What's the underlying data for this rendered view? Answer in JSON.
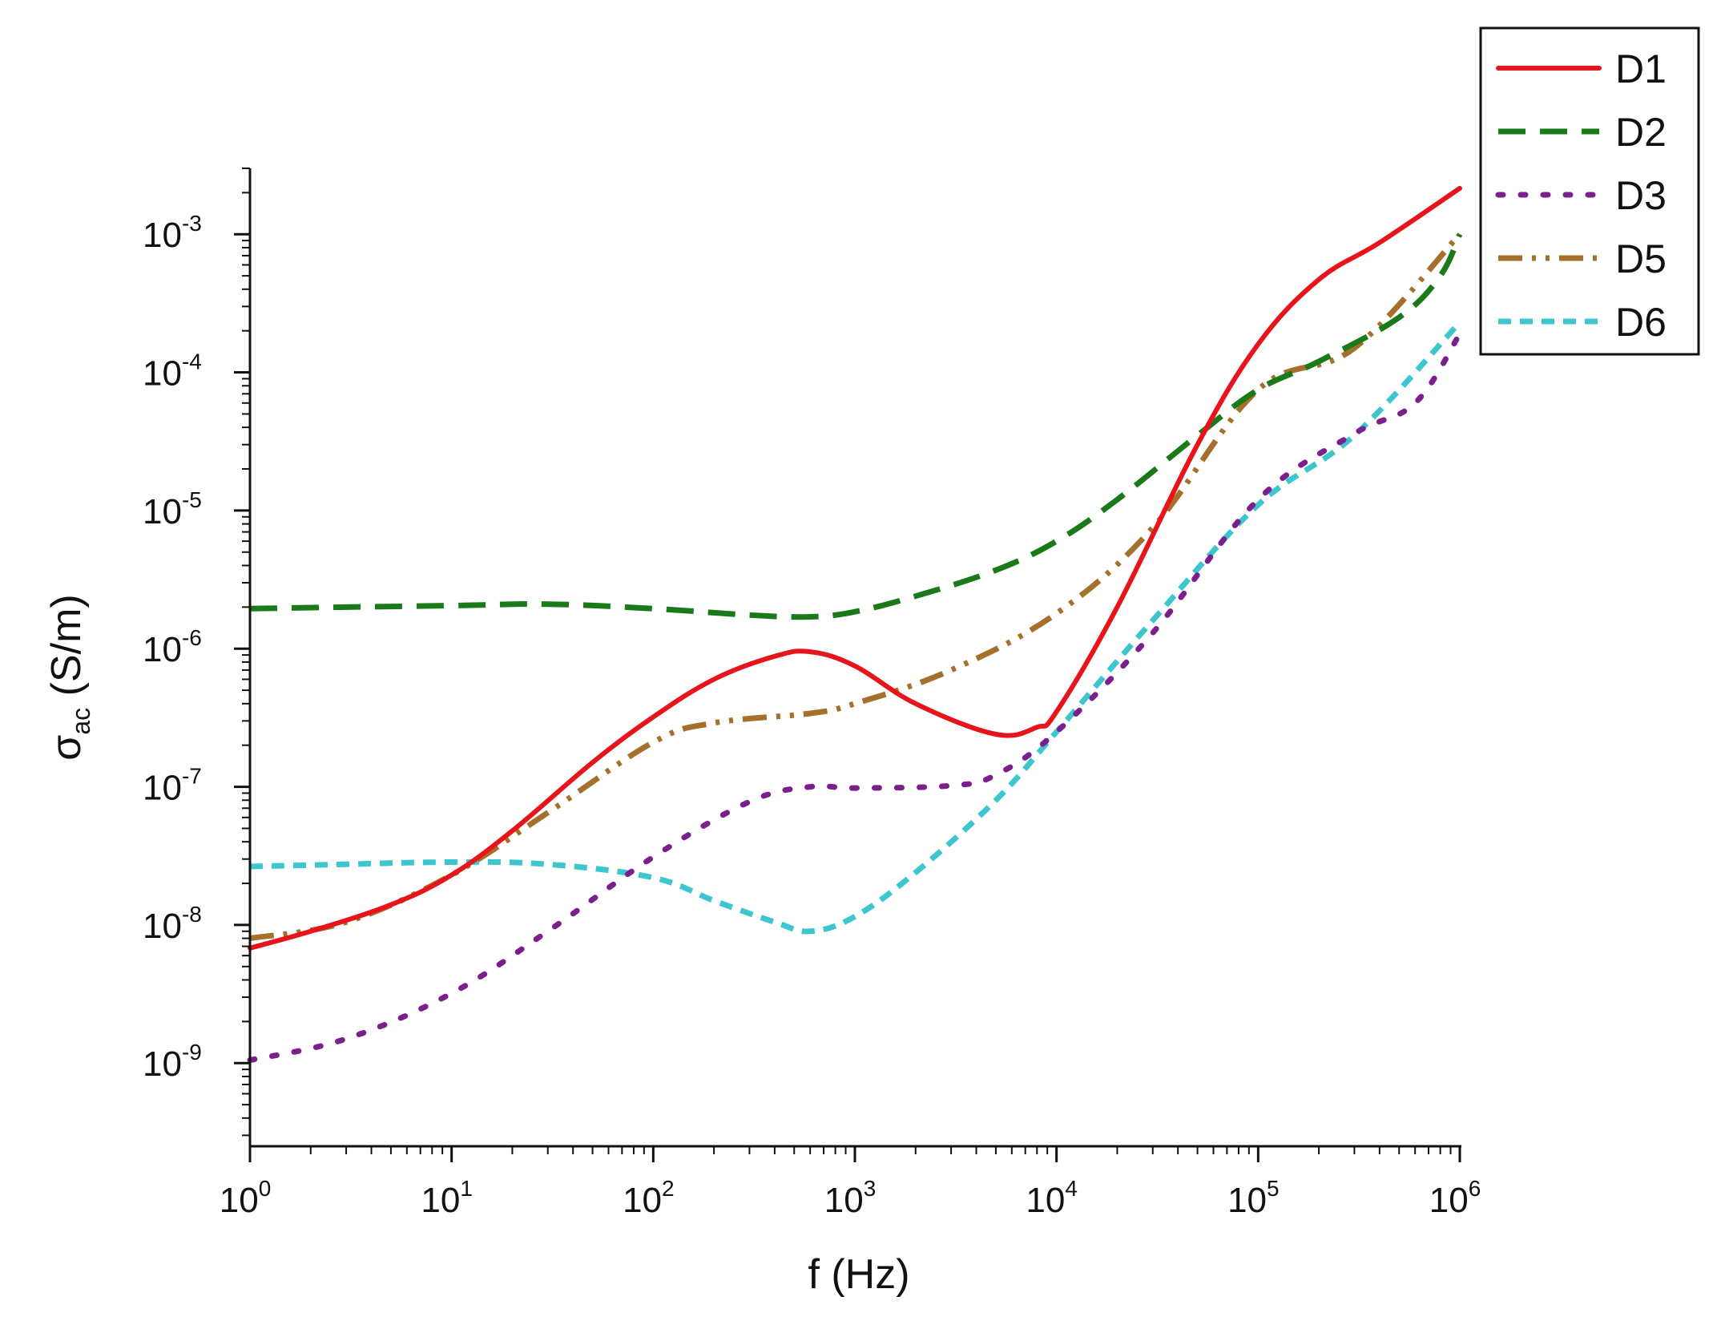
{
  "chart_data": {
    "type": "line",
    "title": "",
    "xlabel": "f (Hz)",
    "ylabel": {
      "symbol": "σ",
      "subscript": "ac",
      "unit": " (S/m)"
    },
    "x_scale": "log",
    "y_scale": "log",
    "xlim": [
      1,
      1000000
    ],
    "ylim": [
      2.5e-10,
      0.003
    ],
    "x_ticks": [
      {
        "value": 1,
        "base": "10",
        "exp": "0"
      },
      {
        "value": 10,
        "base": "10",
        "exp": "1"
      },
      {
        "value": 100,
        "base": "10",
        "exp": "2"
      },
      {
        "value": 1000,
        "base": "10",
        "exp": "3"
      },
      {
        "value": 10000,
        "base": "10",
        "exp": "4"
      },
      {
        "value": 100000,
        "base": "10",
        "exp": "5"
      },
      {
        "value": 1000000,
        "base": "10",
        "exp": "6"
      }
    ],
    "y_ticks": [
      {
        "value": 1e-09,
        "base": "10",
        "exp": "-9"
      },
      {
        "value": 1e-08,
        "base": "10",
        "exp": "-8"
      },
      {
        "value": 1e-07,
        "base": "10",
        "exp": "-7"
      },
      {
        "value": 1e-06,
        "base": "10",
        "exp": "-6"
      },
      {
        "value": 1e-05,
        "base": "10",
        "exp": "-5"
      },
      {
        "value": 0.0001,
        "base": "10",
        "exp": "-4"
      },
      {
        "value": 0.001,
        "base": "10",
        "exp": "-3"
      }
    ],
    "grid": false,
    "legend_position": "top-right",
    "series": [
      {
        "name": "D1",
        "color": "#e8141b",
        "style": "solid",
        "x": [
          1,
          2,
          5,
          10,
          20,
          50,
          100,
          200,
          400,
          600,
          1000,
          2000,
          5000,
          8000,
          10000,
          20000,
          50000,
          100000,
          200000,
          400000,
          1000000
        ],
        "y": [
          6.8e-09,
          9e-09,
          1.4e-08,
          2.3e-08,
          4.8e-08,
          1.5e-07,
          3.2e-07,
          6e-07,
          8.8e-07,
          9.5e-07,
          7.5e-07,
          4e-07,
          2.4e-07,
          2.7e-07,
          3.5e-07,
          2e-06,
          3e-05,
          0.00016,
          0.00047,
          0.00087,
          0.00215
        ]
      },
      {
        "name": "D2",
        "color": "#1a7a1a",
        "style": "dash",
        "x": [
          1,
          3,
          10,
          30,
          100,
          300,
          600,
          1000,
          2000,
          5000,
          10000,
          20000,
          50000,
          100000,
          200000,
          500000,
          800000,
          1000000
        ],
        "y": [
          1.95e-06,
          2e-06,
          2.05e-06,
          2.1e-06,
          1.95e-06,
          1.75e-06,
          1.7e-06,
          1.85e-06,
          2.4e-06,
          3.7e-06,
          6e-06,
          1.2e-05,
          3.5e-05,
          7.5e-05,
          0.00012,
          0.00025,
          0.0005,
          0.001
        ]
      },
      {
        "name": "D3",
        "color": "#7b1f8c",
        "style": "dot",
        "x": [
          1,
          3,
          10,
          30,
          100,
          300,
          600,
          1000,
          3000,
          5000,
          10000,
          30000,
          100000,
          300000,
          600000,
          1000000
        ],
        "y": [
          1.05e-09,
          1.5e-09,
          3.2e-09,
          9e-09,
          3.1e-08,
          7.8e-08,
          1e-07,
          9.8e-08,
          1.02e-07,
          1.22e-07,
          2.5e-07,
          1.3e-06,
          1.2e-05,
          3.6e-05,
          6e-05,
          0.00019
        ]
      },
      {
        "name": "D5",
        "color": "#a5702b",
        "style": "dashdotdot",
        "x": [
          1,
          3,
          10,
          30,
          100,
          200,
          600,
          1000,
          3000,
          10000,
          30000,
          100000,
          300000,
          1000000
        ],
        "y": [
          8e-09,
          1.05e-08,
          2.3e-08,
          6.5e-08,
          2.1e-07,
          2.9e-07,
          3.4e-07,
          4e-07,
          7e-07,
          1.8e-06,
          7.5e-06,
          7.5e-05,
          0.00015,
          0.001
        ]
      },
      {
        "name": "D6",
        "color": "#3ec6cf",
        "style": "shortdash",
        "x": [
          1,
          3,
          10,
          30,
          100,
          200,
          400,
          600,
          1000,
          2000,
          5000,
          10000,
          30000,
          100000,
          300000,
          1000000
        ],
        "y": [
          2.65e-08,
          2.75e-08,
          2.85e-08,
          2.75e-08,
          2.2e-08,
          1.5e-08,
          1.05e-08,
          9e-09,
          1.15e-08,
          2.4e-08,
          8e-08,
          2.5e-07,
          1.6e-06,
          1.1e-05,
          3.5e-05,
          0.00023
        ]
      }
    ]
  }
}
